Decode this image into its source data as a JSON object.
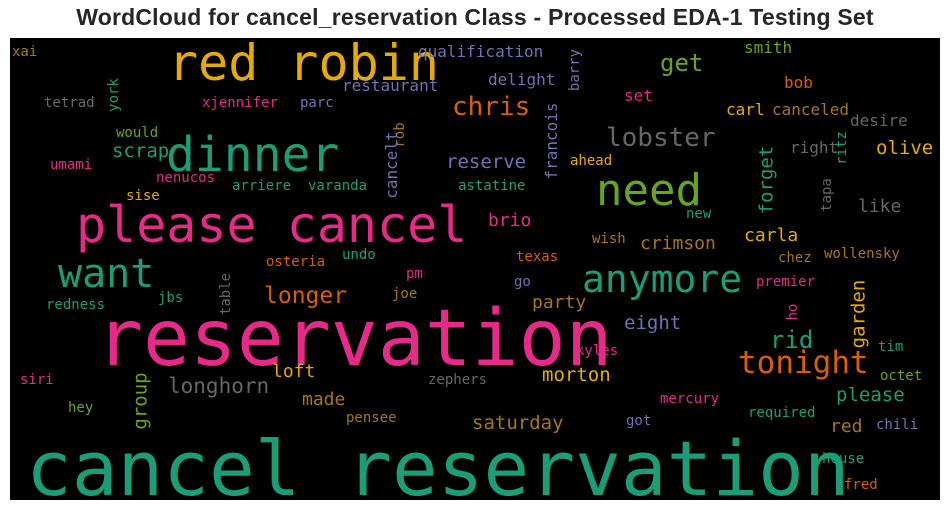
{
  "title": "WordCloud for cancel_reservation Class - Processed EDA-1 Testing Set",
  "background_color": "#000000",
  "palette": {
    "teal": "#1b9e77",
    "orange": "#d95f02",
    "purple": "#7570b3",
    "pink": "#e7298a",
    "green": "#66a61e",
    "gold": "#e6ab02",
    "brown": "#a6761d",
    "gray": "#666666"
  },
  "words": [
    {
      "text": "cancel reservation",
      "color": "teal",
      "vertical": false
    },
    {
      "text": "reservation",
      "color": "pink",
      "vertical": false
    },
    {
      "text": "please cancel",
      "color": "pink",
      "vertical": false
    },
    {
      "text": "red robin",
      "color": "gold",
      "vertical": false
    },
    {
      "text": "dinner",
      "color": "teal",
      "vertical": false
    },
    {
      "text": "need",
      "color": "green",
      "vertical": false
    },
    {
      "text": "want",
      "color": "teal",
      "vertical": false
    },
    {
      "text": "anymore",
      "color": "teal",
      "vertical": false
    },
    {
      "text": "tonight",
      "color": "orange",
      "vertical": false
    },
    {
      "text": "lobster",
      "color": "gray",
      "vertical": false
    },
    {
      "text": "chris",
      "color": "orange",
      "vertical": false
    },
    {
      "text": "longer",
      "color": "orange",
      "vertical": false
    },
    {
      "text": "get",
      "color": "green",
      "vertical": false
    },
    {
      "text": "rid",
      "color": "teal",
      "vertical": false
    },
    {
      "text": "longhorn",
      "color": "gray",
      "vertical": false
    },
    {
      "text": "reserve",
      "color": "purple",
      "vertical": false
    },
    {
      "text": "scrap",
      "color": "teal",
      "vertical": false
    },
    {
      "text": "eight",
      "color": "purple",
      "vertical": false
    },
    {
      "text": "morton",
      "color": "gold",
      "vertical": false
    },
    {
      "text": "saturday",
      "color": "brown",
      "vertical": false
    },
    {
      "text": "please",
      "color": "teal",
      "vertical": false
    },
    {
      "text": "crimson",
      "color": "brown",
      "vertical": false
    },
    {
      "text": "carla",
      "color": "gold",
      "vertical": false
    },
    {
      "text": "olive",
      "color": "gold",
      "vertical": false
    },
    {
      "text": "like",
      "color": "gray",
      "vertical": false
    },
    {
      "text": "party",
      "color": "brown",
      "vertical": false
    },
    {
      "text": "made",
      "color": "brown",
      "vertical": false
    },
    {
      "text": "loft",
      "color": "gold",
      "vertical": false
    },
    {
      "text": "brio",
      "color": "pink",
      "vertical": false
    },
    {
      "text": "red",
      "color": "brown",
      "vertical": false
    },
    {
      "text": "qualification",
      "color": "purple",
      "vertical": false
    },
    {
      "text": "restaurant",
      "color": "purple",
      "vertical": false
    },
    {
      "text": "delight",
      "color": "purple",
      "vertical": false
    },
    {
      "text": "smith",
      "color": "green",
      "vertical": false
    },
    {
      "text": "bob",
      "color": "orange",
      "vertical": false
    },
    {
      "text": "set",
      "color": "pink",
      "vertical": false
    },
    {
      "text": "carl",
      "color": "gold",
      "vertical": false
    },
    {
      "text": "canceled",
      "color": "brown",
      "vertical": false
    },
    {
      "text": "desire",
      "color": "gray",
      "vertical": false
    },
    {
      "text": "right",
      "color": "gray",
      "vertical": false
    },
    {
      "text": "xai",
      "color": "brown",
      "vertical": false
    },
    {
      "text": "tetrad",
      "color": "gray",
      "vertical": false
    },
    {
      "text": "xjennifer",
      "color": "pink",
      "vertical": false
    },
    {
      "text": "parc",
      "color": "purple",
      "vertical": false
    },
    {
      "text": "would",
      "color": "green",
      "vertical": false
    },
    {
      "text": "umami",
      "color": "pink",
      "vertical": false
    },
    {
      "text": "nenucos",
      "color": "pink",
      "vertical": false
    },
    {
      "text": "sise",
      "color": "gold",
      "vertical": false
    },
    {
      "text": "arriere",
      "color": "teal",
      "vertical": false
    },
    {
      "text": "varanda",
      "color": "teal",
      "vertical": false
    },
    {
      "text": "ahead",
      "color": "gold",
      "vertical": false
    },
    {
      "text": "astatine",
      "color": "teal",
      "vertical": false
    },
    {
      "text": "new",
      "color": "teal",
      "vertical": false
    },
    {
      "text": "wish",
      "color": "brown",
      "vertical": false
    },
    {
      "text": "chez",
      "color": "brown",
      "vertical": false
    },
    {
      "text": "wollensky",
      "color": "brown",
      "vertical": false
    },
    {
      "text": "premier",
      "color": "pink",
      "vertical": false
    },
    {
      "text": "texas",
      "color": "orange",
      "vertical": false
    },
    {
      "text": "undo",
      "color": "teal",
      "vertical": false
    },
    {
      "text": "osteria",
      "color": "orange",
      "vertical": false
    },
    {
      "text": "pm",
      "color": "pink",
      "vertical": false
    },
    {
      "text": "go",
      "color": "purple",
      "vertical": false
    },
    {
      "text": "redness",
      "color": "teal",
      "vertical": false
    },
    {
      "text": "jbs",
      "color": "teal",
      "vertical": false
    },
    {
      "text": "joe",
      "color": "brown",
      "vertical": false
    },
    {
      "text": "kyles",
      "color": "pink",
      "vertical": false
    },
    {
      "text": "siri",
      "color": "pink",
      "vertical": false
    },
    {
      "text": "zephers",
      "color": "gray",
      "vertical": false
    },
    {
      "text": "hey",
      "color": "green",
      "vertical": false
    },
    {
      "text": "pensee",
      "color": "brown",
      "vertical": false
    },
    {
      "text": "got",
      "color": "purple",
      "vertical": false
    },
    {
      "text": "mercury",
      "color": "pink",
      "vertical": false
    },
    {
      "text": "required",
      "color": "teal",
      "vertical": false
    },
    {
      "text": "chili",
      "color": "purple",
      "vertical": false
    },
    {
      "text": "tim",
      "color": "teal",
      "vertical": false
    },
    {
      "text": "octet",
      "color": "green",
      "vertical": false
    },
    {
      "text": "house",
      "color": "teal",
      "vertical": false
    },
    {
      "text": "fred",
      "color": "orange",
      "vertical": false
    },
    {
      "text": "york",
      "color": "teal",
      "vertical": true
    },
    {
      "text": "barry",
      "color": "purple",
      "vertical": true
    },
    {
      "text": "rob",
      "color": "brown",
      "vertical": true
    },
    {
      "text": "cancelt",
      "color": "purple",
      "vertical": true
    },
    {
      "text": "francois",
      "color": "purple",
      "vertical": true
    },
    {
      "text": "forget",
      "color": "teal",
      "vertical": true
    },
    {
      "text": "ritz",
      "color": "teal",
      "vertical": true
    },
    {
      "text": "tapa",
      "color": "gray",
      "vertical": true
    },
    {
      "text": "table",
      "color": "gray",
      "vertical": true
    },
    {
      "text": "garden",
      "color": "gold",
      "vertical": true
    },
    {
      "text": "ho",
      "color": "pink",
      "vertical": true
    },
    {
      "text": "group",
      "color": "green",
      "vertical": true
    }
  ]
}
